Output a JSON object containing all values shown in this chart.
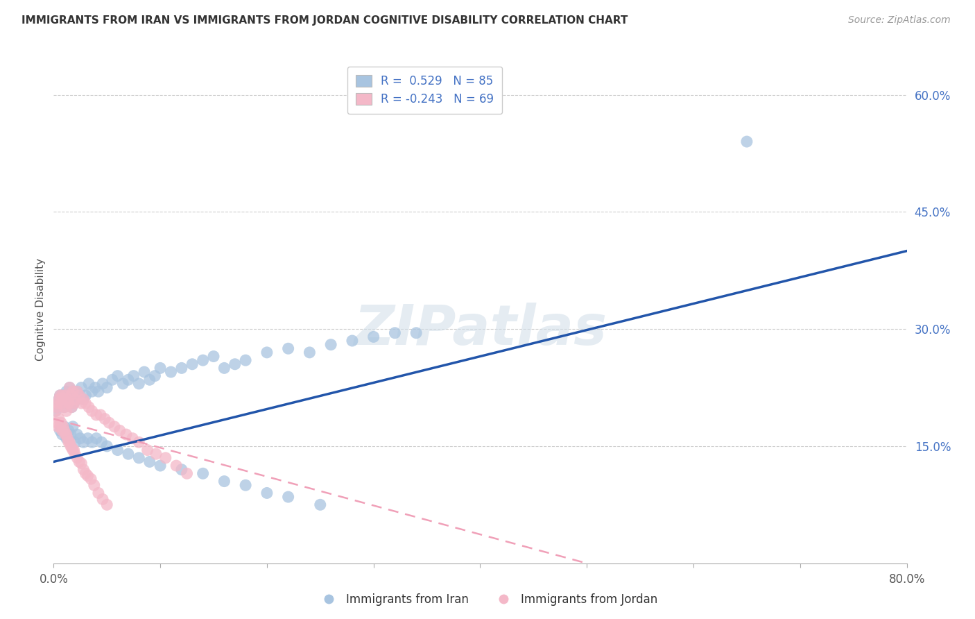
{
  "title": "IMMIGRANTS FROM IRAN VS IMMIGRANTS FROM JORDAN COGNITIVE DISABILITY CORRELATION CHART",
  "source": "Source: ZipAtlas.com",
  "ylabel": "Cognitive Disability",
  "watermark": "ZIPatlas",
  "xlim": [
    0.0,
    0.8
  ],
  "ylim": [
    0.0,
    0.65
  ],
  "iran_color": "#a8c4e0",
  "jordan_color": "#f4b8c8",
  "iran_line_color": "#2255aa",
  "jordan_line_color": "#f0a0b8",
  "iran_R": 0.529,
  "iran_N": 85,
  "jordan_R": -0.243,
  "jordan_N": 69,
  "iran_line_x0": 0.0,
  "iran_line_y0": 0.13,
  "iran_line_x1": 0.8,
  "iran_line_y1": 0.4,
  "jordan_line_x0": 0.0,
  "jordan_line_y0": 0.185,
  "jordan_line_x1": 0.5,
  "jordan_line_y1": 0.0,
  "iran_scatter_x": [
    0.002,
    0.003,
    0.004,
    0.005,
    0.006,
    0.007,
    0.008,
    0.009,
    0.01,
    0.011,
    0.012,
    0.013,
    0.014,
    0.015,
    0.016,
    0.017,
    0.018,
    0.019,
    0.02,
    0.022,
    0.024,
    0.026,
    0.028,
    0.03,
    0.033,
    0.036,
    0.039,
    0.042,
    0.046,
    0.05,
    0.055,
    0.06,
    0.065,
    0.07,
    0.075,
    0.08,
    0.085,
    0.09,
    0.095,
    0.1,
    0.11,
    0.12,
    0.13,
    0.14,
    0.15,
    0.16,
    0.17,
    0.18,
    0.2,
    0.22,
    0.24,
    0.26,
    0.28,
    0.3,
    0.32,
    0.34,
    0.006,
    0.008,
    0.01,
    0.012,
    0.014,
    0.016,
    0.018,
    0.02,
    0.022,
    0.025,
    0.028,
    0.032,
    0.036,
    0.04,
    0.045,
    0.05,
    0.06,
    0.07,
    0.08,
    0.09,
    0.1,
    0.12,
    0.14,
    0.16,
    0.18,
    0.2,
    0.22,
    0.25,
    0.65
  ],
  "iran_scatter_y": [
    0.195,
    0.2,
    0.205,
    0.21,
    0.215,
    0.205,
    0.215,
    0.21,
    0.2,
    0.215,
    0.22,
    0.21,
    0.205,
    0.225,
    0.215,
    0.2,
    0.22,
    0.205,
    0.21,
    0.22,
    0.215,
    0.225,
    0.21,
    0.215,
    0.23,
    0.22,
    0.225,
    0.22,
    0.23,
    0.225,
    0.235,
    0.24,
    0.23,
    0.235,
    0.24,
    0.23,
    0.245,
    0.235,
    0.24,
    0.25,
    0.245,
    0.25,
    0.255,
    0.26,
    0.265,
    0.25,
    0.255,
    0.26,
    0.27,
    0.275,
    0.27,
    0.28,
    0.285,
    0.29,
    0.295,
    0.295,
    0.17,
    0.165,
    0.175,
    0.16,
    0.17,
    0.165,
    0.175,
    0.155,
    0.165,
    0.16,
    0.155,
    0.16,
    0.155,
    0.16,
    0.155,
    0.15,
    0.145,
    0.14,
    0.135,
    0.13,
    0.125,
    0.12,
    0.115,
    0.105,
    0.1,
    0.09,
    0.085,
    0.075,
    0.54
  ],
  "jordan_scatter_x": [
    0.002,
    0.003,
    0.004,
    0.005,
    0.006,
    0.007,
    0.008,
    0.009,
    0.01,
    0.011,
    0.012,
    0.013,
    0.014,
    0.015,
    0.016,
    0.017,
    0.018,
    0.019,
    0.02,
    0.022,
    0.024,
    0.026,
    0.028,
    0.03,
    0.033,
    0.036,
    0.04,
    0.044,
    0.048,
    0.052,
    0.057,
    0.062,
    0.068,
    0.074,
    0.08,
    0.088,
    0.096,
    0.105,
    0.115,
    0.125,
    0.003,
    0.004,
    0.005,
    0.006,
    0.007,
    0.008,
    0.009,
    0.01,
    0.011,
    0.012,
    0.013,
    0.014,
    0.015,
    0.016,
    0.017,
    0.018,
    0.019,
    0.02,
    0.022,
    0.024,
    0.026,
    0.028,
    0.03,
    0.032,
    0.035,
    0.038,
    0.042,
    0.046,
    0.05
  ],
  "jordan_scatter_y": [
    0.195,
    0.2,
    0.205,
    0.21,
    0.215,
    0.205,
    0.215,
    0.21,
    0.2,
    0.215,
    0.195,
    0.21,
    0.205,
    0.225,
    0.215,
    0.2,
    0.22,
    0.205,
    0.21,
    0.22,
    0.215,
    0.205,
    0.21,
    0.205,
    0.2,
    0.195,
    0.19,
    0.19,
    0.185,
    0.18,
    0.175,
    0.17,
    0.165,
    0.16,
    0.155,
    0.145,
    0.14,
    0.135,
    0.125,
    0.115,
    0.18,
    0.175,
    0.185,
    0.175,
    0.18,
    0.17,
    0.175,
    0.17,
    0.165,
    0.165,
    0.16,
    0.155,
    0.155,
    0.15,
    0.148,
    0.145,
    0.145,
    0.14,
    0.135,
    0.13,
    0.128,
    0.12,
    0.115,
    0.112,
    0.108,
    0.1,
    0.09,
    0.082,
    0.075
  ],
  "background_color": "#ffffff",
  "grid_color": "#cccccc",
  "ytick_right_vals": [
    0.15,
    0.3,
    0.45,
    0.6
  ],
  "ytick_right_labels": [
    "15.0%",
    "30.0%",
    "45.0%",
    "60.0%"
  ]
}
